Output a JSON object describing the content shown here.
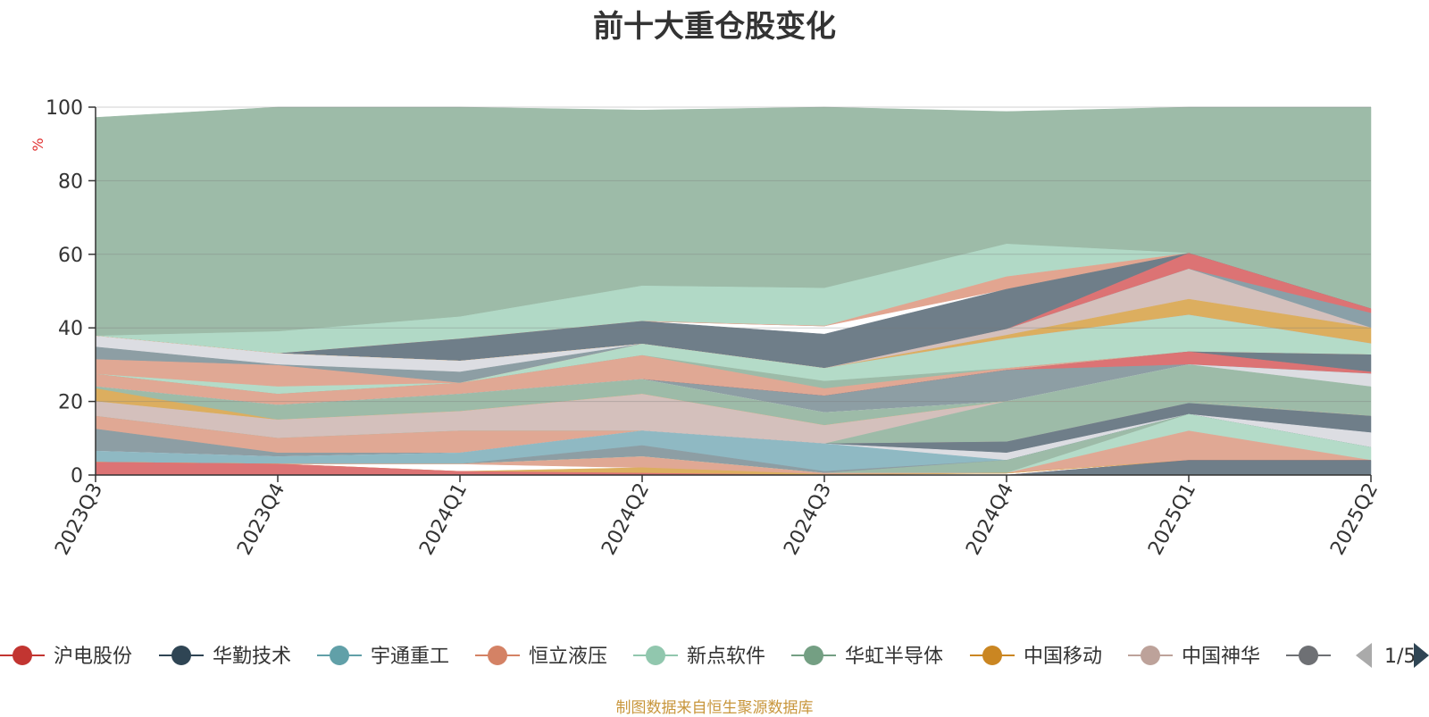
{
  "chart_data": {
    "type": "area",
    "title": "前十大重仓股变化",
    "xlabel": "",
    "ylabel": "%",
    "ylim": [
      0,
      100
    ],
    "yticks": [
      "0",
      "20",
      "40",
      "60",
      "80",
      "100"
    ],
    "categories": [
      "2023Q3",
      "2023Q4",
      "2024Q1",
      "2024Q2",
      "2024Q3",
      "2024Q4",
      "2025Q1",
      "2025Q2"
    ],
    "grid": true,
    "legend_position": "bottom",
    "stack_bands": [
      {
        "color": "#9dbba8",
        "lower": [
          37.8,
          33.0,
          43.0,
          51.4,
          50.8,
          62.8,
          60.3,
          45.2
        ],
        "upper": [
          97.2,
          100,
          100,
          99.2,
          100,
          98.8,
          100,
          100
        ]
      },
      {
        "color": "#b1d9c6",
        "lower": [
          37.8,
          33.0,
          37.0,
          41.8,
          40.5,
          53.9,
          60.3,
          45.2
        ],
        "upper": [
          37.8,
          39.0,
          43.0,
          51.4,
          50.8,
          62.8,
          60.3,
          45.2
        ]
      },
      {
        "color": "#e2a590",
        "lower": [
          37.8,
          33.0,
          37.0,
          41.8,
          40.5,
          50.5,
          60.3,
          45.2
        ],
        "upper": [
          37.8,
          33.0,
          37.0,
          41.8,
          40.5,
          53.9,
          60.3,
          45.2
        ]
      },
      {
        "color": "#6f7e89",
        "lower": [
          37.8,
          33.0,
          31.0,
          35.6,
          29.0,
          39.6,
          60.3,
          45.2
        ],
        "upper": [
          37.8,
          33.0,
          37.0,
          41.8,
          38.3,
          50.5,
          60.3,
          45.2
        ]
      },
      {
        "color": "#dc7374",
        "lower": [
          37.8,
          33.0,
          31.0,
          35.6,
          29.0,
          39.6,
          56.0,
          44.0
        ],
        "upper": [
          37.8,
          33.0,
          31.0,
          35.6,
          29.0,
          39.6,
          60.3,
          45.2
        ]
      },
      {
        "color": "#8aa0a8",
        "lower": [
          37.8,
          33.0,
          31.0,
          35.6,
          29.0,
          39.6,
          56.0,
          40.0
        ],
        "upper": [
          37.8,
          33.0,
          31.0,
          35.6,
          29.0,
          39.6,
          56.0,
          44.0
        ]
      },
      {
        "color": "#d4c0bc",
        "lower": [
          37.8,
          33.0,
          31.0,
          35.6,
          29.0,
          38.0,
          47.8,
          40.0
        ],
        "upper": [
          37.8,
          33.0,
          31.0,
          35.6,
          29.0,
          39.6,
          56.0,
          40.0
        ]
      },
      {
        "color": "#dcae5f",
        "lower": [
          37.8,
          33.0,
          31.0,
          35.6,
          29.0,
          37.0,
          43.5,
          35.7
        ],
        "upper": [
          37.8,
          33.0,
          31.0,
          35.6,
          29.0,
          38.0,
          47.8,
          40.0
        ]
      },
      {
        "color": "#dcdde2",
        "lower": [
          34.8,
          30.0,
          28.0,
          35.6,
          29.0,
          37.0,
          43.5,
          35.7
        ],
        "upper": [
          37.8,
          33.0,
          31.0,
          35.6,
          29.0,
          37.0,
          43.5,
          35.7
        ]
      },
      {
        "color": "#8d9ea4",
        "lower": [
          31.4,
          29.8,
          25.0,
          35.6,
          29.0,
          37.0,
          43.5,
          35.7
        ],
        "upper": [
          34.8,
          30.0,
          28.0,
          35.6,
          29.0,
          37.0,
          43.5,
          35.7
        ]
      },
      {
        "color": "#e0a894",
        "lower": [
          27.4,
          24.0,
          25.0,
          35.6,
          29.0,
          37.0,
          43.5,
          35.7
        ],
        "upper": [
          31.4,
          29.8,
          25.0,
          35.6,
          29.0,
          37.0,
          43.5,
          35.7
        ]
      },
      {
        "color": "#b4dbc8",
        "lower": [
          27.4,
          22.0,
          25.0,
          32.5,
          25.5,
          29.0,
          33.5,
          32.7
        ],
        "upper": [
          27.4,
          24.0,
          25.0,
          35.6,
          29.0,
          37.0,
          43.5,
          35.7
        ]
      },
      {
        "color": "#9dbba8",
        "lower": [
          27.4,
          22.0,
          25.0,
          32.5,
          23.5,
          29.0,
          33.5,
          32.7
        ],
        "upper": [
          27.4,
          22.0,
          25.0,
          32.5,
          25.5,
          29.0,
          33.5,
          32.7
        ]
      },
      {
        "color": "#e0a894",
        "lower": [
          24.0,
          19.0,
          22.0,
          26.0,
          21.5,
          28.5,
          33.5,
          32.7
        ],
        "upper": [
          27.4,
          22.0,
          25.0,
          32.5,
          23.5,
          29.0,
          33.5,
          32.7
        ]
      },
      {
        "color": "#6f7e89",
        "lower": [
          24.0,
          19.0,
          22.0,
          26.0,
          21.5,
          28.5,
          30.8,
          28.0
        ],
        "upper": [
          24.0,
          19.0,
          22.0,
          26.0,
          21.5,
          28.5,
          33.5,
          32.7
        ]
      },
      {
        "color": "#dc7374",
        "lower": [
          24.0,
          19.0,
          22.0,
          26.0,
          21.5,
          28.5,
          30.0,
          27.5
        ],
        "upper": [
          24.0,
          19.0,
          22.0,
          26.0,
          21.5,
          28.5,
          33.5,
          28.0
        ]
      },
      {
        "color": "#8d9ea4",
        "lower": [
          24.0,
          19.0,
          22.0,
          26.0,
          17.0,
          20.0,
          30.0,
          27.5
        ],
        "upper": [
          24.0,
          19.0,
          22.0,
          26.0,
          21.5,
          28.5,
          30.0,
          27.5
        ]
      },
      {
        "color": "#dcdde2",
        "lower": [
          24.0,
          19.0,
          22.0,
          26.0,
          17.0,
          20.0,
          30.0,
          24.0
        ],
        "upper": [
          24.0,
          19.0,
          22.0,
          26.0,
          17.0,
          20.0,
          30.0,
          27.5
        ]
      },
      {
        "color": "#9dbba8",
        "lower": [
          20.0,
          15.0,
          17.3,
          22.0,
          13.5,
          20.0,
          20.0,
          16.0
        ],
        "upper": [
          24.0,
          19.0,
          22.0,
          26.0,
          17.0,
          20.0,
          30.0,
          24.0
        ]
      },
      {
        "color": "#dcae5f",
        "lower": [
          20.0,
          15.0,
          17.3,
          22.0,
          13.5,
          20.0,
          20.0,
          16.0
        ],
        "upper": [
          23.5,
          15.0,
          17.3,
          22.0,
          13.5,
          20.0,
          20.0,
          16.0
        ]
      },
      {
        "color": "#d4c0bc",
        "lower": [
          16.0,
          10.0,
          12.0,
          12.0,
          8.5,
          20.0,
          20.0,
          16.0
        ],
        "upper": [
          20.0,
          15.0,
          17.3,
          22.0,
          13.5,
          20.0,
          20.0,
          16.0
        ]
      },
      {
        "color": "#9dbba8",
        "lower": [
          16.0,
          10.0,
          12.0,
          12.0,
          8.5,
          9.0,
          19.5,
          16.0
        ],
        "upper": [
          16.0,
          10.0,
          12.0,
          12.0,
          8.5,
          20.0,
          20.0,
          16.0
        ]
      },
      {
        "color": "#e0a894",
        "lower": [
          12.5,
          6.0,
          6.0,
          12.0,
          8.5,
          9.0,
          19.5,
          16.0
        ],
        "upper": [
          16.0,
          10.0,
          12.0,
          12.0,
          8.5,
          9.0,
          19.5,
          16.0
        ]
      },
      {
        "color": "#8d9ea4",
        "lower": [
          6.5,
          5.0,
          6.0,
          12.0,
          8.5,
          9.0,
          19.5,
          16.0
        ],
        "upper": [
          12.5,
          6.0,
          6.0,
          12.0,
          8.5,
          9.0,
          19.5,
          16.0
        ]
      },
      {
        "color": "#6f7e89",
        "lower": [
          6.5,
          5.0,
          6.0,
          12.0,
          8.5,
          6.0,
          16.5,
          11.5
        ],
        "upper": [
          6.5,
          5.0,
          6.0,
          12.0,
          8.5,
          9.0,
          19.5,
          16.0
        ]
      },
      {
        "color": "#dcdde2",
        "lower": [
          6.5,
          5.0,
          6.0,
          12.0,
          8.5,
          4.0,
          16.5,
          7.5
        ],
        "upper": [
          6.5,
          5.0,
          6.0,
          12.0,
          8.5,
          6.0,
          16.5,
          11.5
        ]
      },
      {
        "color": "#8fb9c3",
        "lower": [
          3.5,
          3.0,
          3.0,
          8.0,
          1.0,
          4.0,
          16.5,
          7.5
        ],
        "upper": [
          6.5,
          5.0,
          6.0,
          12.0,
          8.5,
          4.0,
          16.5,
          7.5
        ]
      },
      {
        "color": "#8d9ea4",
        "lower": [
          3.5,
          3.0,
          3.0,
          5.0,
          0.5,
          4.0,
          16.5,
          7.5
        ],
        "upper": [
          3.5,
          3.0,
          3.0,
          8.0,
          1.0,
          4.0,
          16.5,
          7.5
        ]
      },
      {
        "color": "#9dbba8",
        "lower": [
          3.5,
          3.0,
          3.0,
          5.0,
          0.5,
          0.5,
          16.5,
          7.5
        ],
        "upper": [
          3.5,
          3.0,
          3.0,
          5.0,
          0.5,
          4.0,
          16.5,
          7.5
        ]
      },
      {
        "color": "#b4dbc8",
        "lower": [
          3.5,
          3.0,
          3.0,
          5.0,
          0.5,
          0.5,
          12.0,
          4.0
        ],
        "upper": [
          3.5,
          3.0,
          3.0,
          5.0,
          0.5,
          0.5,
          16.5,
          7.5
        ]
      },
      {
        "color": "#e0a894",
        "lower": [
          3.5,
          3.0,
          3.0,
          2.0,
          0.2,
          0.5,
          4.0,
          4.0
        ],
        "upper": [
          3.5,
          3.0,
          3.0,
          5.0,
          0.5,
          0.5,
          12.0,
          4.0
        ]
      },
      {
        "color": "#dcae5f",
        "lower": [
          3.5,
          3.0,
          1.0,
          0.5,
          0,
          0.5,
          4.0,
          4.0
        ],
        "upper": [
          3.5,
          3.0,
          1.0,
          2.0,
          0.2,
          0.5,
          4.0,
          4.0
        ]
      },
      {
        "color": "#dc7374",
        "lower": [
          0,
          0,
          0,
          0,
          0,
          0,
          4.0,
          4.0
        ],
        "upper": [
          3.5,
          3.0,
          1.0,
          0.5,
          0,
          0,
          4.0,
          4.0
        ]
      },
      {
        "color": "#6f7e89",
        "lower": [
          0,
          0,
          0,
          0,
          0,
          0,
          0,
          0
        ],
        "upper": [
          0,
          0,
          0,
          0,
          0,
          0,
          4.0,
          4.0
        ]
      }
    ],
    "legend": [
      {
        "name": "沪电股份",
        "color": "#c23531"
      },
      {
        "name": "华勤技术",
        "color": "#2f4554"
      },
      {
        "name": "宇通重工",
        "color": "#61a0a8"
      },
      {
        "name": "恒立液压",
        "color": "#d48265"
      },
      {
        "name": "新点软件",
        "color": "#91c7ae"
      },
      {
        "name": "华虹半导体",
        "color": "#749f83"
      },
      {
        "name": "中国移动",
        "color": "#ca8622"
      },
      {
        "name": "中国神华",
        "color": "#bda29a"
      },
      {
        "name": "",
        "color": "#6e7074"
      }
    ],
    "legend_page": "1/5"
  },
  "colors": {
    "axis": "#333333",
    "grid": "#777777",
    "ylabel": "#e03030",
    "source": "#c8963c",
    "nav_prev": "#aaaaaa",
    "nav_next": "#2f4554"
  },
  "source_note": "制图数据来自恒生聚源数据库"
}
